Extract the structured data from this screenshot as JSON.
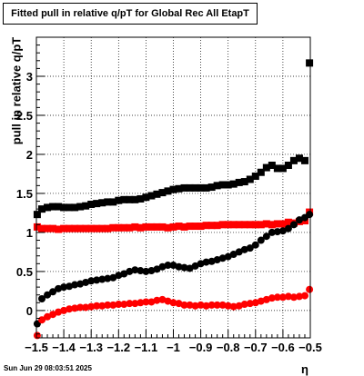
{
  "title": "Fitted pull in relative q/pT for Global Rec All EtapT",
  "footer": "Sun Jun 29 08:03:51 2025",
  "chart_data": {
    "type": "scatter",
    "title": "Fitted pull in relative q/pT for Global Rec All EtapT",
    "xlabel": "η",
    "ylabel": "pull in relative q/pT",
    "xlim": [
      -1.5,
      -0.5
    ],
    "ylim": [
      -0.35,
      3.5
    ],
    "grid": true,
    "x_ticks": [
      -1.5,
      -1.4,
      -1.3,
      -1.2,
      -1.1,
      -1,
      -0.9,
      -0.8,
      -0.7,
      -0.6,
      -0.5
    ],
    "x_tick_labels": [
      "−1.5",
      "−1.4",
      "−1.3",
      "−1.2",
      "−1.1",
      "−1",
      "−0.9",
      "−0.8",
      "−0.7",
      "−0.6",
      "−0.5"
    ],
    "y_ticks": [
      0,
      0.5,
      1,
      1.5,
      2,
      2.5,
      3
    ],
    "y_tick_labels": [
      "0",
      "0.5",
      "1",
      "1.5",
      "2",
      "2.5",
      "3"
    ],
    "series": [
      {
        "color": "#000000",
        "marker": "square",
        "x": [
          -1.497,
          -1.48,
          -1.46,
          -1.44,
          -1.42,
          -1.4,
          -1.38,
          -1.36,
          -1.34,
          -1.32,
          -1.3,
          -1.28,
          -1.26,
          -1.24,
          -1.22,
          -1.2,
          -1.18,
          -1.16,
          -1.14,
          -1.12,
          -1.1,
          -1.08,
          -1.06,
          -1.04,
          -1.02,
          -1.0,
          -0.98,
          -0.96,
          -0.94,
          -0.92,
          -0.9,
          -0.88,
          -0.86,
          -0.84,
          -0.82,
          -0.8,
          -0.78,
          -0.76,
          -0.74,
          -0.72,
          -0.7,
          -0.68,
          -0.66,
          -0.64,
          -0.62,
          -0.6,
          -0.58,
          -0.56,
          -0.54,
          -0.52,
          -0.503
        ],
        "y": [
          1.23,
          1.3,
          1.32,
          1.33,
          1.33,
          1.32,
          1.32,
          1.32,
          1.33,
          1.34,
          1.36,
          1.37,
          1.38,
          1.39,
          1.39,
          1.41,
          1.42,
          1.42,
          1.42,
          1.43,
          1.45,
          1.47,
          1.49,
          1.51,
          1.53,
          1.55,
          1.56,
          1.57,
          1.57,
          1.57,
          1.57,
          1.57,
          1.58,
          1.6,
          1.61,
          1.61,
          1.62,
          1.64,
          1.65,
          1.68,
          1.72,
          1.77,
          1.83,
          1.86,
          1.82,
          1.82,
          1.86,
          1.92,
          1.95,
          1.92,
          3.17
        ]
      },
      {
        "color": "#ff0000",
        "marker": "square",
        "x": [
          -1.497,
          -1.48,
          -1.46,
          -1.44,
          -1.42,
          -1.4,
          -1.38,
          -1.36,
          -1.34,
          -1.32,
          -1.3,
          -1.28,
          -1.26,
          -1.24,
          -1.22,
          -1.2,
          -1.18,
          -1.16,
          -1.14,
          -1.12,
          -1.1,
          -1.08,
          -1.06,
          -1.04,
          -1.02,
          -1.0,
          -0.98,
          -0.96,
          -0.94,
          -0.92,
          -0.9,
          -0.88,
          -0.86,
          -0.84,
          -0.82,
          -0.8,
          -0.78,
          -0.76,
          -0.74,
          -0.72,
          -0.7,
          -0.68,
          -0.66,
          -0.64,
          -0.62,
          -0.6,
          -0.58,
          -0.56,
          -0.54,
          -0.52,
          -0.503
        ],
        "y": [
          1.07,
          1.05,
          1.05,
          1.05,
          1.04,
          1.05,
          1.05,
          1.05,
          1.05,
          1.05,
          1.05,
          1.05,
          1.05,
          1.05,
          1.06,
          1.06,
          1.06,
          1.06,
          1.07,
          1.06,
          1.07,
          1.07,
          1.07,
          1.07,
          1.06,
          1.07,
          1.08,
          1.07,
          1.08,
          1.08,
          1.08,
          1.09,
          1.09,
          1.09,
          1.1,
          1.1,
          1.1,
          1.1,
          1.1,
          1.1,
          1.1,
          1.1,
          1.11,
          1.1,
          1.11,
          1.11,
          1.13,
          1.12,
          1.14,
          1.15,
          1.26
        ]
      },
      {
        "color": "#000000",
        "marker": "circle",
        "x": [
          -1.497,
          -1.48,
          -1.46,
          -1.44,
          -1.42,
          -1.4,
          -1.38,
          -1.36,
          -1.34,
          -1.32,
          -1.3,
          -1.28,
          -1.26,
          -1.24,
          -1.22,
          -1.2,
          -1.18,
          -1.16,
          -1.14,
          -1.12,
          -1.1,
          -1.08,
          -1.06,
          -1.04,
          -1.02,
          -1.0,
          -0.98,
          -0.96,
          -0.94,
          -0.92,
          -0.9,
          -0.88,
          -0.86,
          -0.84,
          -0.82,
          -0.8,
          -0.78,
          -0.76,
          -0.74,
          -0.72,
          -0.7,
          -0.68,
          -0.66,
          -0.64,
          -0.62,
          -0.6,
          -0.58,
          -0.56,
          -0.54,
          -0.52,
          -0.503
        ],
        "y": [
          -0.17,
          0.15,
          0.2,
          0.24,
          0.28,
          0.3,
          0.31,
          0.33,
          0.34,
          0.36,
          0.38,
          0.39,
          0.4,
          0.41,
          0.42,
          0.45,
          0.47,
          0.5,
          0.52,
          0.51,
          0.5,
          0.51,
          0.53,
          0.56,
          0.58,
          0.58,
          0.56,
          0.55,
          0.54,
          0.57,
          0.6,
          0.62,
          0.63,
          0.65,
          0.67,
          0.69,
          0.72,
          0.75,
          0.78,
          0.8,
          0.84,
          0.9,
          0.95,
          1.0,
          1.01,
          1.02,
          1.05,
          1.1,
          1.16,
          1.19,
          1.23
        ]
      },
      {
        "color": "#ff0000",
        "marker": "circle",
        "x": [
          -1.497,
          -1.48,
          -1.46,
          -1.44,
          -1.42,
          -1.4,
          -1.38,
          -1.36,
          -1.34,
          -1.32,
          -1.3,
          -1.28,
          -1.26,
          -1.24,
          -1.22,
          -1.2,
          -1.18,
          -1.16,
          -1.14,
          -1.12,
          -1.1,
          -1.08,
          -1.06,
          -1.04,
          -1.02,
          -1.0,
          -0.98,
          -0.96,
          -0.94,
          -0.92,
          -0.9,
          -0.88,
          -0.86,
          -0.84,
          -0.82,
          -0.8,
          -0.78,
          -0.76,
          -0.74,
          -0.72,
          -0.7,
          -0.68,
          -0.66,
          -0.64,
          -0.62,
          -0.6,
          -0.58,
          -0.56,
          -0.54,
          -0.52,
          -0.503
        ],
        "y": [
          -0.32,
          -0.12,
          -0.08,
          -0.05,
          -0.02,
          0.0,
          0.02,
          0.03,
          0.04,
          0.04,
          0.05,
          0.06,
          0.06,
          0.07,
          0.07,
          0.08,
          0.08,
          0.09,
          0.09,
          0.1,
          0.11,
          0.11,
          0.13,
          0.14,
          0.12,
          0.1,
          0.09,
          0.07,
          0.07,
          0.06,
          0.07,
          0.06,
          0.07,
          0.07,
          0.07,
          0.06,
          0.05,
          0.06,
          0.08,
          0.09,
          0.1,
          0.12,
          0.14,
          0.16,
          0.17,
          0.17,
          0.18,
          0.17,
          0.18,
          0.19,
          0.27
        ]
      }
    ]
  }
}
